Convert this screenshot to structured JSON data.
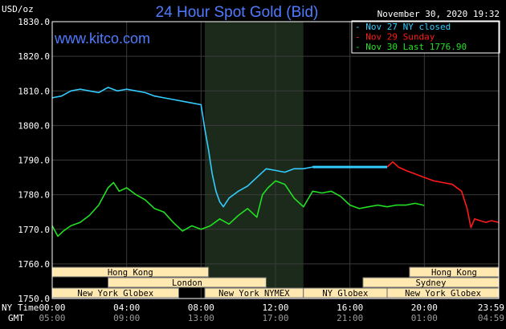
{
  "header": {
    "title": "24 Hour Spot Gold (Bid)",
    "date": "November 30, 2020 19:32",
    "unit": "USD/oz",
    "brand": "www.kitco.com"
  },
  "legend": [
    {
      "label": "Nov 27 NY closed",
      "color": "#33ccff"
    },
    {
      "label": "Nov 29 Sunday",
      "color": "#ff1a1a"
    },
    {
      "label": "Nov 30 Last 1776.90",
      "color": "#22e022"
    }
  ],
  "time_rows": {
    "ny_label": "NY Time",
    "gmt_label": "GMT",
    "ny_ticks": [
      "00:00",
      "04:00",
      "08:00",
      "12:00",
      "16:00",
      "20:00",
      "23:59"
    ],
    "gmt_ticks": [
      "05:00",
      "09:00",
      "13:00",
      "17:00",
      "21:00",
      "01:00",
      "04:59"
    ]
  },
  "markets": [
    {
      "label": "Hong Kong",
      "row": 0,
      "start": 0,
      "end": 8.4
    },
    {
      "label": "Hong Kong",
      "row": 0,
      "start": 19.2,
      "end": 24
    },
    {
      "label": "London",
      "row": 1,
      "start": 3,
      "end": 11.5
    },
    {
      "label": "Sydney",
      "row": 1,
      "start": 16.7,
      "end": 24
    },
    {
      "label": "New York Globex",
      "row": 2,
      "start": 0,
      "end": 6.8
    },
    {
      "label": "New York NYMEX",
      "row": 2,
      "start": 8.2,
      "end": 13.5
    },
    {
      "label": "NY Globex",
      "row": 2,
      "start": 13.5,
      "end": 18
    },
    {
      "label": "New York Globex",
      "row": 2,
      "start": 18,
      "end": 24
    }
  ],
  "colors": {
    "background": "#000000",
    "plot_background": "#000000",
    "shade": "#1c2a1c",
    "grid": "#3a3a3a",
    "market_box": "#ffe9b0",
    "text": "#ffffff",
    "gmt_text": "#9a9a9a",
    "title": "#4f7bff"
  },
  "chart_data": {
    "type": "line",
    "title": "24 Hour Spot Gold (Bid)",
    "ylabel": "USD/oz",
    "xlabel": "",
    "ylim": [
      1750,
      1830
    ],
    "xlim": [
      0,
      24
    ],
    "yticks": [
      "1750.0",
      "1760.0",
      "1770.0",
      "1780.0",
      "1790.0",
      "1800.0",
      "1810.0",
      "1820.0",
      "1830.0"
    ],
    "shaded_region": [
      8.2,
      13.5
    ],
    "grid": true,
    "legend_position": "top-right",
    "series": [
      {
        "name": "Nov 27 NY closed",
        "color": "#33ccff",
        "x": [
          0,
          0.5,
          1.0,
          1.5,
          2.0,
          2.5,
          3.0,
          3.5,
          4.0,
          4.5,
          5.0,
          5.5,
          6.0,
          6.5,
          7.0,
          7.5,
          8.0,
          8.2,
          8.4,
          8.6,
          8.8,
          9.0,
          9.2,
          9.5,
          10.0,
          10.5,
          11.0,
          11.5,
          12.0,
          12.5,
          13.0,
          13.5,
          14.0,
          15.0,
          16.0,
          17.0,
          18.0
        ],
        "y": [
          1808,
          1808.5,
          1810,
          1810.5,
          1810,
          1809.5,
          1811,
          1810,
          1810.5,
          1810,
          1809.5,
          1808.5,
          1808,
          1807.5,
          1807,
          1806.5,
          1806,
          1799,
          1793,
          1786,
          1781,
          1778,
          1776.5,
          1779,
          1781,
          1782.5,
          1785,
          1787.5,
          1787,
          1786.5,
          1787.5,
          1787.5,
          1788,
          1788,
          1788,
          1788,
          1788
        ]
      },
      {
        "name": "Nov 29 Sunday",
        "color": "#ff1a1a",
        "x": [
          18.0,
          18.3,
          18.6,
          19.0,
          19.5,
          20.0,
          20.5,
          21.0,
          21.5,
          22.0,
          22.3,
          22.5,
          22.7,
          23.0,
          23.3,
          23.6,
          24.0
        ],
        "y": [
          1788,
          1789.5,
          1788,
          1787,
          1786,
          1785,
          1784,
          1783.5,
          1783,
          1781,
          1776,
          1770.5,
          1773,
          1772.5,
          1772,
          1772.5,
          1772
        ]
      },
      {
        "name": "Nov 30 Last 1776.90",
        "color": "#22e022",
        "x": [
          0,
          0.3,
          0.6,
          1.0,
          1.5,
          2.0,
          2.5,
          3.0,
          3.3,
          3.6,
          4.0,
          4.5,
          5.0,
          5.5,
          6.0,
          6.5,
          7.0,
          7.5,
          8.0,
          8.5,
          9.0,
          9.5,
          10.0,
          10.5,
          11.0,
          11.3,
          11.6,
          12.0,
          12.5,
          13.0,
          13.5,
          14.0,
          14.5,
          15.0,
          15.5,
          16.0,
          16.5,
          17.0,
          17.5,
          18.0,
          18.5,
          19.0,
          19.5,
          20.0
        ],
        "y": [
          1771,
          1768,
          1769.5,
          1771,
          1772,
          1774,
          1777,
          1782,
          1783.5,
          1781,
          1782,
          1780,
          1778.5,
          1776,
          1775,
          1772,
          1769.5,
          1771,
          1770,
          1771,
          1773,
          1771.5,
          1774,
          1776,
          1773.5,
          1780,
          1782,
          1784,
          1783,
          1779,
          1776.5,
          1781,
          1780.5,
          1781,
          1779.5,
          1777,
          1776,
          1776.5,
          1777,
          1776.5,
          1777,
          1777,
          1777.5,
          1776.9
        ]
      }
    ]
  }
}
